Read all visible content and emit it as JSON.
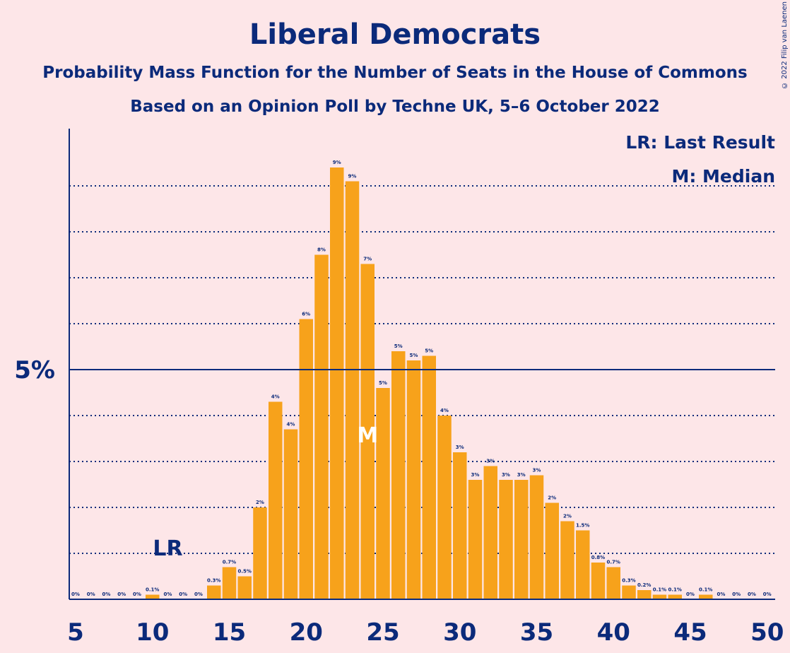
{
  "title": "Liberal Democrats",
  "subtitle": "Probability Mass Function for the Number of Seats in the House of Commons",
  "subtitle2": "Based on an Opinion Poll by Techne UK, 5–6 October 2022",
  "credit": "© 2022 Filip van Laenen",
  "legend": {
    "lr": "LR: Last Result",
    "m": "M: Median"
  },
  "colors": {
    "bar": "#f7a21b",
    "axis": "#0b2a7a",
    "background": "#fde6e8"
  },
  "chart_data": {
    "type": "bar",
    "x": [
      5,
      6,
      7,
      8,
      9,
      10,
      11,
      12,
      13,
      14,
      15,
      16,
      17,
      18,
      19,
      20,
      21,
      22,
      23,
      24,
      25,
      26,
      27,
      28,
      29,
      30,
      31,
      32,
      33,
      34,
      35,
      36,
      37,
      38,
      39,
      40,
      41,
      42,
      43,
      44,
      45,
      46,
      47,
      48,
      49,
      50
    ],
    "values": [
      0,
      0,
      0,
      0,
      0,
      0.1,
      0,
      0,
      0,
      0.3,
      0.7,
      0.5,
      2,
      4.3,
      3.7,
      6.1,
      7.5,
      9.4,
      9.1,
      7.3,
      4.6,
      5.4,
      5.2,
      5.3,
      4,
      3.2,
      2.6,
      2.9,
      2.6,
      2.6,
      2.7,
      2.1,
      1.7,
      1.5,
      0.8,
      0.7,
      0.3,
      0.2,
      0.1,
      0.1,
      0,
      0.1,
      0,
      0,
      0,
      0
    ],
    "labels": [
      "0%",
      "0%",
      "0%",
      "0%",
      "0%",
      "0.1%",
      "0%",
      "0%",
      "0%",
      "0.3%",
      "0.7%",
      "0.5%",
      "2%",
      "4%",
      "4%",
      "6%",
      "8%",
      "9%",
      "9%",
      "7%",
      "5%",
      "5%",
      "5%",
      "5%",
      "4%",
      "3%",
      "3%",
      "3%",
      "3%",
      "3%",
      "3%",
      "2%",
      "2%",
      "1.5%",
      "0.8%",
      "0.7%",
      "0.3%",
      "0.2%",
      "0.1%",
      "0.1%",
      "0%",
      "0.1%",
      "0%",
      "0%",
      "0%",
      "0%"
    ],
    "xticks": [
      5,
      10,
      15,
      20,
      25,
      30,
      35,
      40,
      45,
      50
    ],
    "xtick_labels": [
      "5",
      "10",
      "15",
      "20",
      "25",
      "30",
      "35",
      "40",
      "45",
      "50"
    ],
    "ytick_label": "5%",
    "ytick_value": 5,
    "ylim": [
      0,
      10
    ],
    "last_result": {
      "seat": 11,
      "label": "LR"
    },
    "median": {
      "seat": 24,
      "label": "M"
    },
    "grid": true
  }
}
